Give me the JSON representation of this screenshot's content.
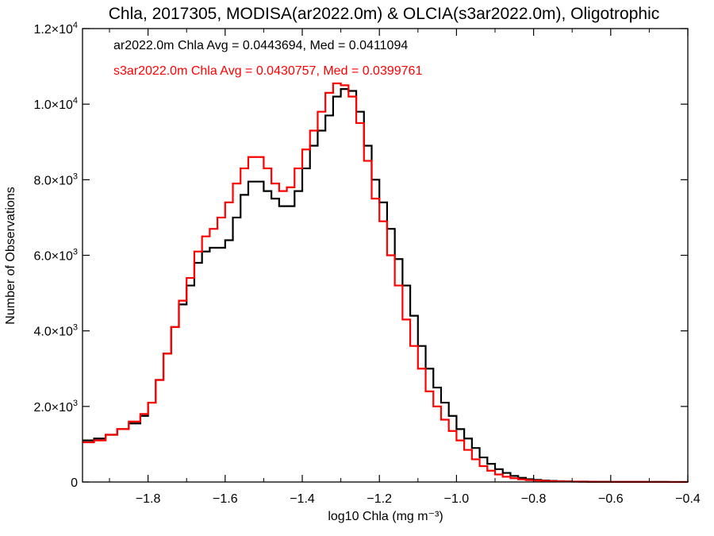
{
  "chart_data": {
    "type": "line",
    "step": true,
    "title": "Chla, 2017305, MODISA(ar2022.0m) & OLCIA(s3ar2022.0m), Oligotrophic",
    "xlabel": "log10 Chla (mg m⁻³)",
    "ylabel": "Number of Observations",
    "xlim": [
      -1.97,
      -0.4
    ],
    "ylim": [
      0,
      12000
    ],
    "x_ticks": [
      {
        "value": -1.8,
        "label": "−1.8"
      },
      {
        "value": -1.6,
        "label": "−1.6"
      },
      {
        "value": -1.4,
        "label": "−1.4"
      },
      {
        "value": -1.2,
        "label": "−1.2"
      },
      {
        "value": -1.0,
        "label": "−1.0"
      },
      {
        "value": -0.8,
        "label": "−0.8"
      },
      {
        "value": -0.6,
        "label": "−0.6"
      },
      {
        "value": -0.4,
        "label": "−0.4"
      }
    ],
    "y_ticks": [
      {
        "value": 0,
        "mant": "0",
        "exp": ""
      },
      {
        "value": 2000,
        "mant": "2.0×10",
        "exp": "3"
      },
      {
        "value": 4000,
        "mant": "4.0×10",
        "exp": "3"
      },
      {
        "value": 6000,
        "mant": "6.0×10",
        "exp": "3"
      },
      {
        "value": 8000,
        "mant": "8.0×10",
        "exp": "3"
      },
      {
        "value": 10000,
        "mant": "1.0×10",
        "exp": "4"
      },
      {
        "value": 12000,
        "mant": "1.2×10",
        "exp": "4"
      }
    ],
    "x": [
      -1.97,
      -1.94,
      -1.91,
      -1.88,
      -1.85,
      -1.82,
      -1.8,
      -1.78,
      -1.76,
      -1.74,
      -1.72,
      -1.7,
      -1.68,
      -1.66,
      -1.64,
      -1.62,
      -1.6,
      -1.58,
      -1.56,
      -1.54,
      -1.52,
      -1.5,
      -1.48,
      -1.46,
      -1.44,
      -1.42,
      -1.4,
      -1.38,
      -1.36,
      -1.34,
      -1.32,
      -1.3,
      -1.28,
      -1.26,
      -1.24,
      -1.22,
      -1.2,
      -1.18,
      -1.16,
      -1.14,
      -1.12,
      -1.1,
      -1.08,
      -1.06,
      -1.04,
      -1.02,
      -1.0,
      -0.98,
      -0.96,
      -0.94,
      -0.92,
      -0.9,
      -0.88,
      -0.86,
      -0.84,
      -0.82,
      -0.8,
      -0.78,
      -0.76,
      -0.74,
      -0.72,
      -0.7,
      -0.68,
      -0.66,
      -0.64,
      -0.6,
      -0.55,
      -0.5,
      -0.45,
      -0.4
    ],
    "series": [
      {
        "name": "ar2022.0m",
        "color": "#000000",
        "values": [
          1100,
          1150,
          1250,
          1400,
          1550,
          1750,
          2100,
          2700,
          3400,
          4100,
          4700,
          5200,
          5800,
          6100,
          6200,
          6200,
          6400,
          7000,
          7600,
          7950,
          7950,
          7700,
          7500,
          7300,
          7300,
          7700,
          8300,
          8900,
          9300,
          9700,
          10200,
          10400,
          10350,
          9800,
          8900,
          8000,
          7400,
          6700,
          5900,
          5200,
          4400,
          3600,
          3000,
          2500,
          2100,
          1750,
          1400,
          1150,
          900,
          650,
          480,
          340,
          240,
          160,
          110,
          75,
          55,
          40,
          30,
          22,
          16,
          12,
          10,
          8,
          6,
          4,
          3,
          2,
          1,
          0
        ]
      },
      {
        "name": "s3ar2022.0m",
        "color": "#ff0000",
        "values": [
          1050,
          1100,
          1250,
          1400,
          1600,
          1800,
          2100,
          2700,
          3400,
          4100,
          4800,
          5400,
          6100,
          6500,
          6700,
          7000,
          7400,
          7900,
          8300,
          8600,
          8600,
          8300,
          7900,
          7700,
          7800,
          8300,
          8800,
          9300,
          9800,
          10300,
          10550,
          10500,
          10200,
          9500,
          8500,
          7500,
          6900,
          6000,
          5200,
          4300,
          3600,
          3000,
          2400,
          2000,
          1650,
          1350,
          1100,
          850,
          600,
          420,
          300,
          200,
          140,
          100,
          70,
          50,
          40,
          30,
          22,
          16,
          12,
          9,
          7,
          5,
          4,
          3,
          2,
          1,
          0,
          0
        ]
      }
    ],
    "annotations": [
      {
        "text": "ar2022.0m Chla Avg = 0.0443694, Med = 0.0411094",
        "color": "#000000"
      },
      {
        "text": "s3ar2022.0m Chla Avg = 0.0430757, Med = 0.0399761",
        "color": "#ff0000"
      }
    ],
    "grid": false
  }
}
